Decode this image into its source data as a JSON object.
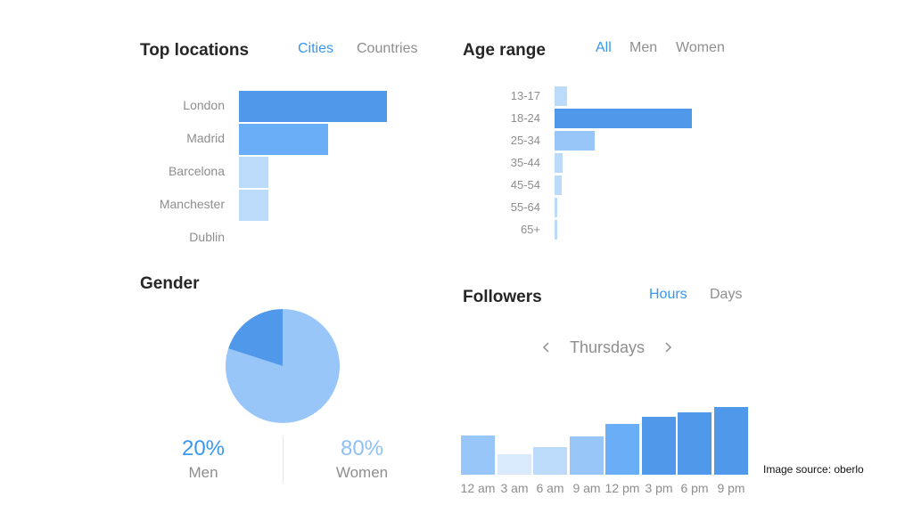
{
  "colors": {
    "dark": "#4f98ea",
    "medium": "#6aaef7",
    "light": "#98c6f8",
    "pale": "#bcdaf9",
    "palest": "#d9eafc"
  },
  "locations": {
    "title": "Top locations",
    "tabs": [
      {
        "label": "Cities",
        "active": true
      },
      {
        "label": "Countries",
        "active": false
      }
    ],
    "items": [
      {
        "label": "London",
        "value": 100
      },
      {
        "label": "Madrid",
        "value": 60
      },
      {
        "label": "Barcelona",
        "value": 20
      },
      {
        "label": "Manchester",
        "value": 20
      },
      {
        "label": "Dublin",
        "value": 0
      }
    ]
  },
  "age": {
    "title": "Age range",
    "tabs": [
      {
        "label": "All",
        "active": true
      },
      {
        "label": "Men",
        "active": false
      },
      {
        "label": "Women",
        "active": false
      }
    ],
    "items": [
      {
        "label": "13-17",
        "value": 9
      },
      {
        "label": "18-24",
        "value": 100
      },
      {
        "label": "25-34",
        "value": 29
      },
      {
        "label": "35-44",
        "value": 6
      },
      {
        "label": "45-54",
        "value": 5
      },
      {
        "label": "55-64",
        "value": 2
      },
      {
        "label": "65+",
        "value": 2
      }
    ]
  },
  "gender": {
    "title": "Gender",
    "men": {
      "pct": "20%",
      "label": "Men",
      "value": 20
    },
    "women": {
      "pct": "80%",
      "label": "Women",
      "value": 80
    }
  },
  "followers": {
    "title": "Followers",
    "tabs": [
      {
        "label": "Hours",
        "active": true
      },
      {
        "label": "Days",
        "active": false
      }
    ],
    "day": "Thursdays",
    "prev_icon": "chevron-left-icon",
    "next_icon": "chevron-right-icon",
    "items": [
      {
        "label": "12 am",
        "value": 58
      },
      {
        "label": "3 am",
        "value": 30
      },
      {
        "label": "6 am",
        "value": 41
      },
      {
        "label": "9 am",
        "value": 56
      },
      {
        "label": "12 pm",
        "value": 75
      },
      {
        "label": "3 pm",
        "value": 86
      },
      {
        "label": "6 pm",
        "value": 92
      },
      {
        "label": "9 pm",
        "value": 100
      }
    ]
  },
  "caption": "Image source: oberlo"
}
